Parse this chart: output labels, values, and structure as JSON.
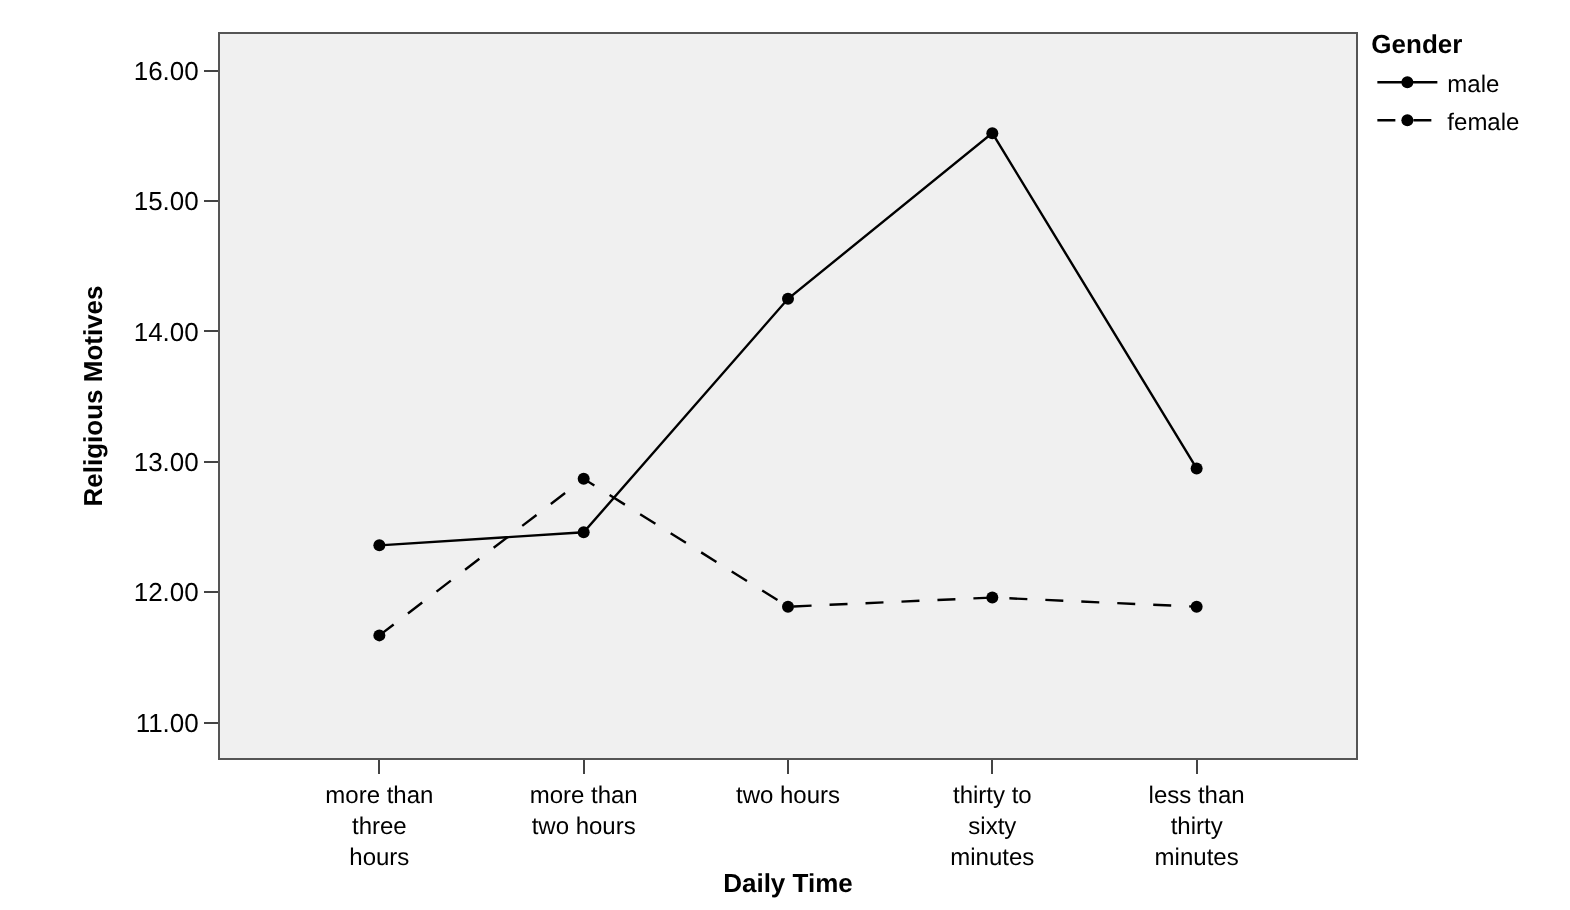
{
  "chart_data": {
    "type": "line",
    "xlabel": "Daily Time",
    "ylabel": "Religious Motives",
    "legend_title": "Gender",
    "categories": [
      "more than\nthree\nhours",
      "more than\ntwo hours",
      "two hours",
      "thirty to\nsixty\nminutes",
      "less than\nthirty\nminutes"
    ],
    "series": [
      {
        "name": "male",
        "color": "#000000",
        "line_style": "solid",
        "values": [
          12.36,
          12.46,
          14.25,
          15.52,
          12.95
        ]
      },
      {
        "name": "female",
        "color": "#000000",
        "line_style": "dashed",
        "values": [
          11.67,
          12.87,
          11.89,
          11.96,
          11.89
        ]
      }
    ],
    "ylim": [
      10.73,
      16.28
    ],
    "yticks": [
      {
        "value": 11,
        "label": "11.00"
      },
      {
        "value": 12,
        "label": "12.00"
      },
      {
        "value": 13,
        "label": "13.00"
      },
      {
        "value": 14,
        "label": "14.00"
      },
      {
        "value": 15,
        "label": "15.00"
      },
      {
        "value": 16,
        "label": "16.00"
      }
    ],
    "grid": false,
    "legend": "top right",
    "marker": "circle"
  }
}
